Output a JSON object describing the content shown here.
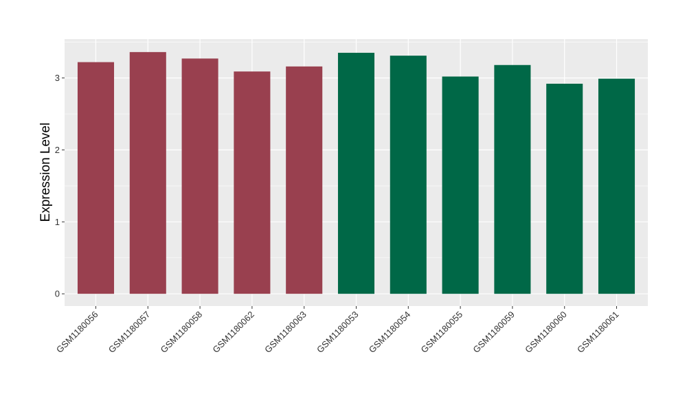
{
  "chart_data": {
    "type": "bar",
    "title": "",
    "xlabel": "",
    "ylabel": "Expression Level",
    "ylim": [
      -0.17,
      3.54
    ],
    "yticks": [
      0,
      1,
      2,
      3
    ],
    "grid": true,
    "legend": "none",
    "panel_color": "#EBEBEB",
    "grid_color": "#FFFFFF",
    "categories": [
      "GSM1180056",
      "GSM1180057",
      "GSM1180058",
      "GSM1180062",
      "GSM1180063",
      "GSM1180053",
      "GSM1180054",
      "GSM1180055",
      "GSM1180059",
      "GSM1180060",
      "GSM1180061"
    ],
    "values": [
      3.22,
      3.36,
      3.27,
      3.09,
      3.16,
      3.35,
      3.31,
      3.02,
      3.18,
      2.92,
      2.99
    ],
    "bar_colors": [
      "#99404F",
      "#99404F",
      "#99404F",
      "#99404F",
      "#99404F",
      "#006847",
      "#006847",
      "#006847",
      "#006847",
      "#006847",
      "#006847"
    ]
  }
}
